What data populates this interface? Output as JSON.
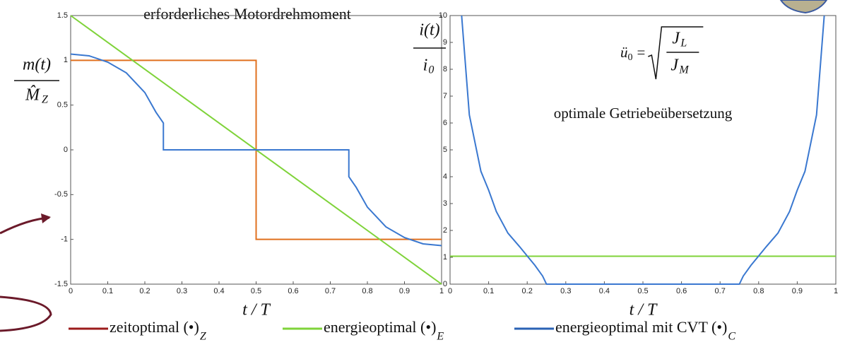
{
  "chart_data": [
    {
      "type": "line",
      "title": "erforderliches Motordrehmoment",
      "ylabel": {
        "numerator": "m(t)",
        "denominator": "M̂",
        "denominator_sub": "Z"
      },
      "xlabel": "t / T",
      "xlim": [
        0,
        1
      ],
      "ylim": [
        -1.5,
        1.5
      ],
      "xticks": [
        0,
        0.1,
        0.2,
        0.3,
        0.4,
        0.5,
        0.6,
        0.7,
        0.8,
        0.9,
        1
      ],
      "yticks": [
        -1.5,
        -1,
        -0.5,
        0,
        0.5,
        1,
        1.5
      ],
      "series": [
        {
          "name": "zeitoptimal (•)",
          "name_sub": "Z",
          "color": "#e0701f",
          "legend_color": "#9b1b1b",
          "x": [
            0,
            0.5,
            0.5,
            1
          ],
          "values": [
            1,
            1,
            -1,
            -1
          ]
        },
        {
          "name": "energieoptimal (•)",
          "name_sub": "E",
          "color": "#7fd33a",
          "legend_color": "#7fd33a",
          "x": [
            0,
            1
          ],
          "values": [
            1.5,
            -1.5
          ]
        },
        {
          "name": "energieoptimal mit CVT (•)",
          "name_sub": "C",
          "color": "#3a78d0",
          "legend_color": "#2a62b4",
          "x": [
            0,
            0.05,
            0.1,
            0.15,
            0.2,
            0.23,
            0.25,
            0.25,
            0.75,
            0.75,
            0.77,
            0.8,
            0.85,
            0.9,
            0.95,
            1
          ],
          "values": [
            1.07,
            1.05,
            0.98,
            0.86,
            0.64,
            0.42,
            0.3,
            0,
            0,
            -0.3,
            -0.42,
            -0.64,
            -0.86,
            -0.98,
            -1.05,
            -1.07
          ]
        }
      ]
    },
    {
      "type": "line",
      "ylabel": {
        "numerator": "i(t)",
        "denominator": "i",
        "denominator_sub": "0"
      },
      "xlabel": "t / T",
      "annotation": "optimale Getriebeübersetzung",
      "formula": {
        "lhs": "ü",
        "lhs_sub": "0",
        "eq": "=",
        "num": "J",
        "num_sub": "L",
        "den": "J",
        "den_sub": "M"
      },
      "xlim": [
        0,
        1
      ],
      "ylim": [
        0,
        10
      ],
      "xticks": [
        0,
        0.1,
        0.2,
        0.3,
        0.4,
        0.5,
        0.6,
        0.7,
        0.8,
        0.9,
        1
      ],
      "yticks": [
        0,
        1,
        2,
        3,
        4,
        5,
        6,
        7,
        8,
        9,
        10
      ],
      "series": [
        {
          "color": "#7fd33a",
          "x": [
            0,
            1
          ],
          "values": [
            1.04,
            1.04
          ]
        },
        {
          "color": "#3a78d0",
          "x": [
            0.03,
            0.05,
            0.08,
            0.1,
            0.12,
            0.15,
            0.18,
            0.2,
            0.22,
            0.24,
            0.25,
            0.75,
            0.76,
            0.78,
            0.8,
            0.82,
            0.85,
            0.88,
            0.9,
            0.92,
            0.95,
            0.97
          ],
          "values": [
            10,
            6.3,
            4.2,
            3.5,
            2.7,
            1.9,
            1.4,
            1.05,
            0.7,
            0.3,
            0,
            0,
            0.3,
            0.7,
            1.05,
            1.4,
            1.9,
            2.7,
            3.5,
            4.2,
            6.3,
            10
          ]
        }
      ]
    }
  ]
}
